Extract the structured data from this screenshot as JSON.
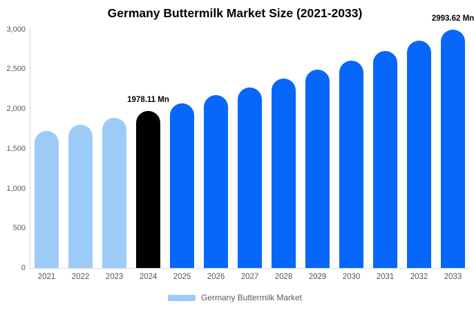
{
  "title": "Germany Buttermilk Market Size (2021-2033)",
  "legend": {
    "label": "Germany Buttermilk Market",
    "swatch_color": "#9dcbf8"
  },
  "colors": {
    "historical_bar": "#9dcbf8",
    "base_year_bar": "#000000",
    "forecast_bar": "#0667fa",
    "axis_line": "#d4d4d4",
    "tick_text": "#555555",
    "value_label_text": "#000000"
  },
  "chart_data": {
    "type": "bar",
    "title": "Germany Buttermilk Market Size (2021-2033)",
    "series_name": "Germany Buttermilk Market",
    "unit": "Mn",
    "categories": [
      "2021",
      "2022",
      "2023",
      "2024",
      "2025",
      "2026",
      "2027",
      "2028",
      "2029",
      "2030",
      "2031",
      "2032",
      "2033"
    ],
    "values": [
      1723,
      1804,
      1889,
      1978.11,
      2071,
      2169,
      2271,
      2378,
      2490,
      2607,
      2730,
      2859,
      2993.62
    ],
    "bar_colors": [
      "#9dcbf8",
      "#9dcbf8",
      "#9dcbf8",
      "#000000",
      "#0667fa",
      "#0667fa",
      "#0667fa",
      "#0667fa",
      "#0667fa",
      "#0667fa",
      "#0667fa",
      "#0667fa",
      "#0667fa"
    ],
    "value_labels": {
      "2024": "1978.11 Mn",
      "2033": "2993.62 Mn"
    },
    "y_ticks": [
      {
        "value": 0,
        "label": "0"
      },
      {
        "value": 500,
        "label": "500"
      },
      {
        "value": 1000,
        "label": "1,000"
      },
      {
        "value": 1500,
        "label": "1,500"
      },
      {
        "value": 2000,
        "label": "2,000"
      },
      {
        "value": 2500,
        "label": "2,500"
      },
      {
        "value": 3000,
        "label": "3,000"
      }
    ],
    "ylim": [
      0,
      3000
    ],
    "xlabel": "",
    "ylabel": "",
    "grid": false,
    "legend_position": "bottom"
  }
}
